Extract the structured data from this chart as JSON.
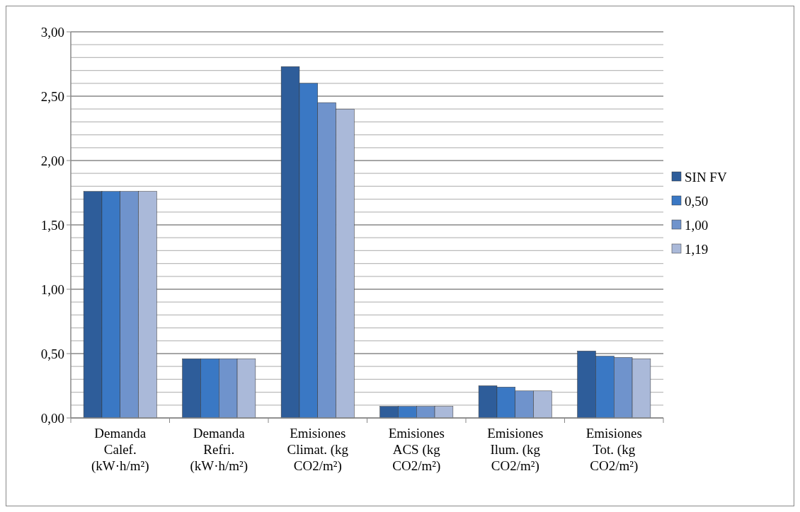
{
  "chart_data": {
    "type": "bar",
    "categories": [
      "Demanda Calef. (kW·h/m²)",
      "Demanda Refri. (kW·h/m²)",
      "Emisiones Climat. (kg CO2/m²)",
      "Emisiones ACS (kg CO2/m²)",
      "Emisiones Ilum. (kg CO2/m²)",
      "Emisiones Tot. (kg CO2/m²)"
    ],
    "series": [
      {
        "name": "SIN FV",
        "color": "#2e5d9a",
        "values": [
          1.76,
          0.46,
          2.73,
          0.09,
          0.25,
          0.52
        ]
      },
      {
        "name": "0,50",
        "color": "#3a78c4",
        "values": [
          1.76,
          0.46,
          2.6,
          0.09,
          0.24,
          0.48
        ]
      },
      {
        "name": "1,00",
        "color": "#6f93cc",
        "values": [
          1.76,
          0.46,
          2.45,
          0.09,
          0.21,
          0.47
        ]
      },
      {
        "name": "1,19",
        "color": "#aab9d9",
        "values": [
          1.76,
          0.46,
          2.4,
          0.09,
          0.21,
          0.46
        ]
      }
    ],
    "ylim": [
      0,
      3
    ],
    "yticks": [
      {
        "value": 0,
        "label": "0,00"
      },
      {
        "value": 0.1,
        "label": null
      },
      {
        "value": 0.2,
        "label": null
      },
      {
        "value": 0.3,
        "label": null
      },
      {
        "value": 0.4,
        "label": null
      },
      {
        "value": 0.5,
        "label": "0,50"
      },
      {
        "value": 0.6,
        "label": null
      },
      {
        "value": 0.7,
        "label": null
      },
      {
        "value": 0.8,
        "label": null
      },
      {
        "value": 0.9,
        "label": null
      },
      {
        "value": 1,
        "label": "1,00"
      },
      {
        "value": 1.1,
        "label": null
      },
      {
        "value": 1.2,
        "label": null
      },
      {
        "value": 1.3,
        "label": null
      },
      {
        "value": 1.4,
        "label": null
      },
      {
        "value": 1.5,
        "label": "1,50"
      },
      {
        "value": 1.6,
        "label": null
      },
      {
        "value": 1.7,
        "label": null
      },
      {
        "value": 1.8,
        "label": null
      },
      {
        "value": 1.9,
        "label": null
      },
      {
        "value": 2,
        "label": "2,00"
      },
      {
        "value": 2.1,
        "label": null
      },
      {
        "value": 2.2,
        "label": null
      },
      {
        "value": 2.3,
        "label": null
      },
      {
        "value": 2.4,
        "label": null
      },
      {
        "value": 2.5,
        "label": "2,50"
      },
      {
        "value": 2.6,
        "label": null
      },
      {
        "value": 2.7,
        "label": null
      },
      {
        "value": 2.8,
        "label": null
      },
      {
        "value": 2.9,
        "label": null
      },
      {
        "value": 3,
        "label": "3,00"
      }
    ],
    "grid": "y",
    "legend": "right"
  }
}
